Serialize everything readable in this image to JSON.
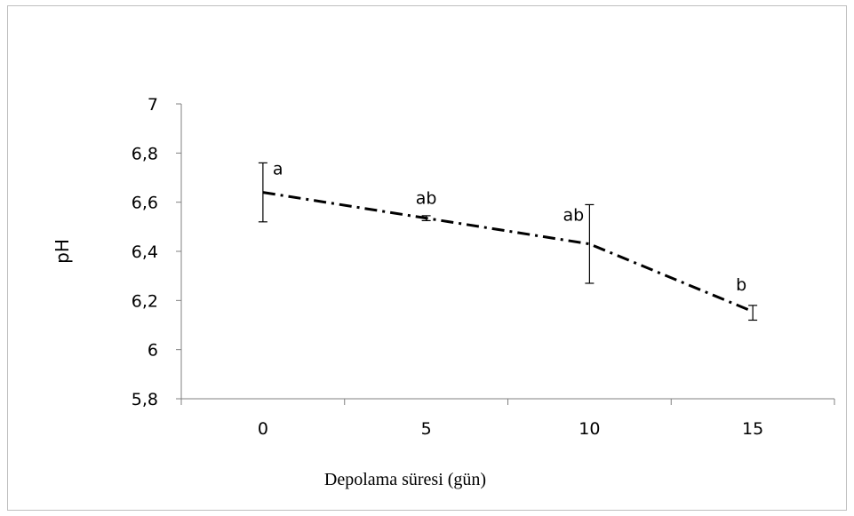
{
  "chart_data": {
    "type": "line",
    "title": "",
    "xlabel": "Depolama süresi (gün)",
    "ylabel": "pH",
    "x": [
      0,
      5,
      10,
      15
    ],
    "x_tick_labels": [
      "0",
      "5",
      "10",
      "15"
    ],
    "ylim": [
      5.8,
      7
    ],
    "y_ticks": [
      5.8,
      6,
      6.2,
      6.4,
      6.6,
      6.8,
      7
    ],
    "y_tick_labels": [
      "5,8",
      "6",
      "6,2",
      "6,4",
      "6,6",
      "6,8",
      "7"
    ],
    "grid": false,
    "legend": "none",
    "line_style": "dash-dot",
    "line_color": "#000000",
    "series": [
      {
        "values": [
          6.64,
          6.535,
          6.43,
          6.155
        ],
        "error_low": [
          6.52,
          6.525,
          6.27,
          6.12
        ],
        "error_high": [
          6.76,
          6.545,
          6.59,
          6.18
        ],
        "significance_labels": [
          "a",
          "ab",
          "ab",
          "b"
        ]
      }
    ]
  }
}
